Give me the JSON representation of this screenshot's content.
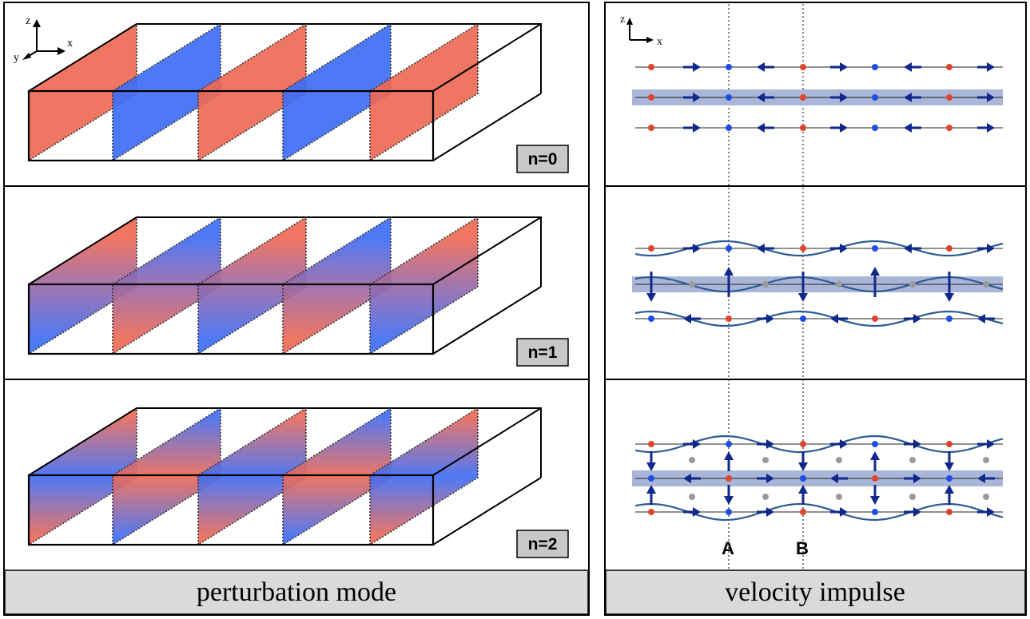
{
  "left_panel": {
    "caption": "perturbation mode",
    "axes": {
      "z": "z",
      "x": "x",
      "y": "y"
    },
    "modes": [
      {
        "label": "n=0"
      },
      {
        "label": "n=1"
      },
      {
        "label": "n=2"
      }
    ]
  },
  "right_panel": {
    "caption": "velocity impulse",
    "axes": {
      "z": "z",
      "x": "x"
    },
    "markers": {
      "a": "A",
      "b": "B"
    }
  },
  "colors": {
    "red": "#ee6a55",
    "blue": "#3f6ef5",
    "arrow": "#10288a",
    "dot_red": "#e0452c",
    "dot_blue": "#1d4fe6",
    "dot_gray": "#9a9a9a",
    "band": "#aab6d8",
    "caption_bg": "#dadada"
  }
}
